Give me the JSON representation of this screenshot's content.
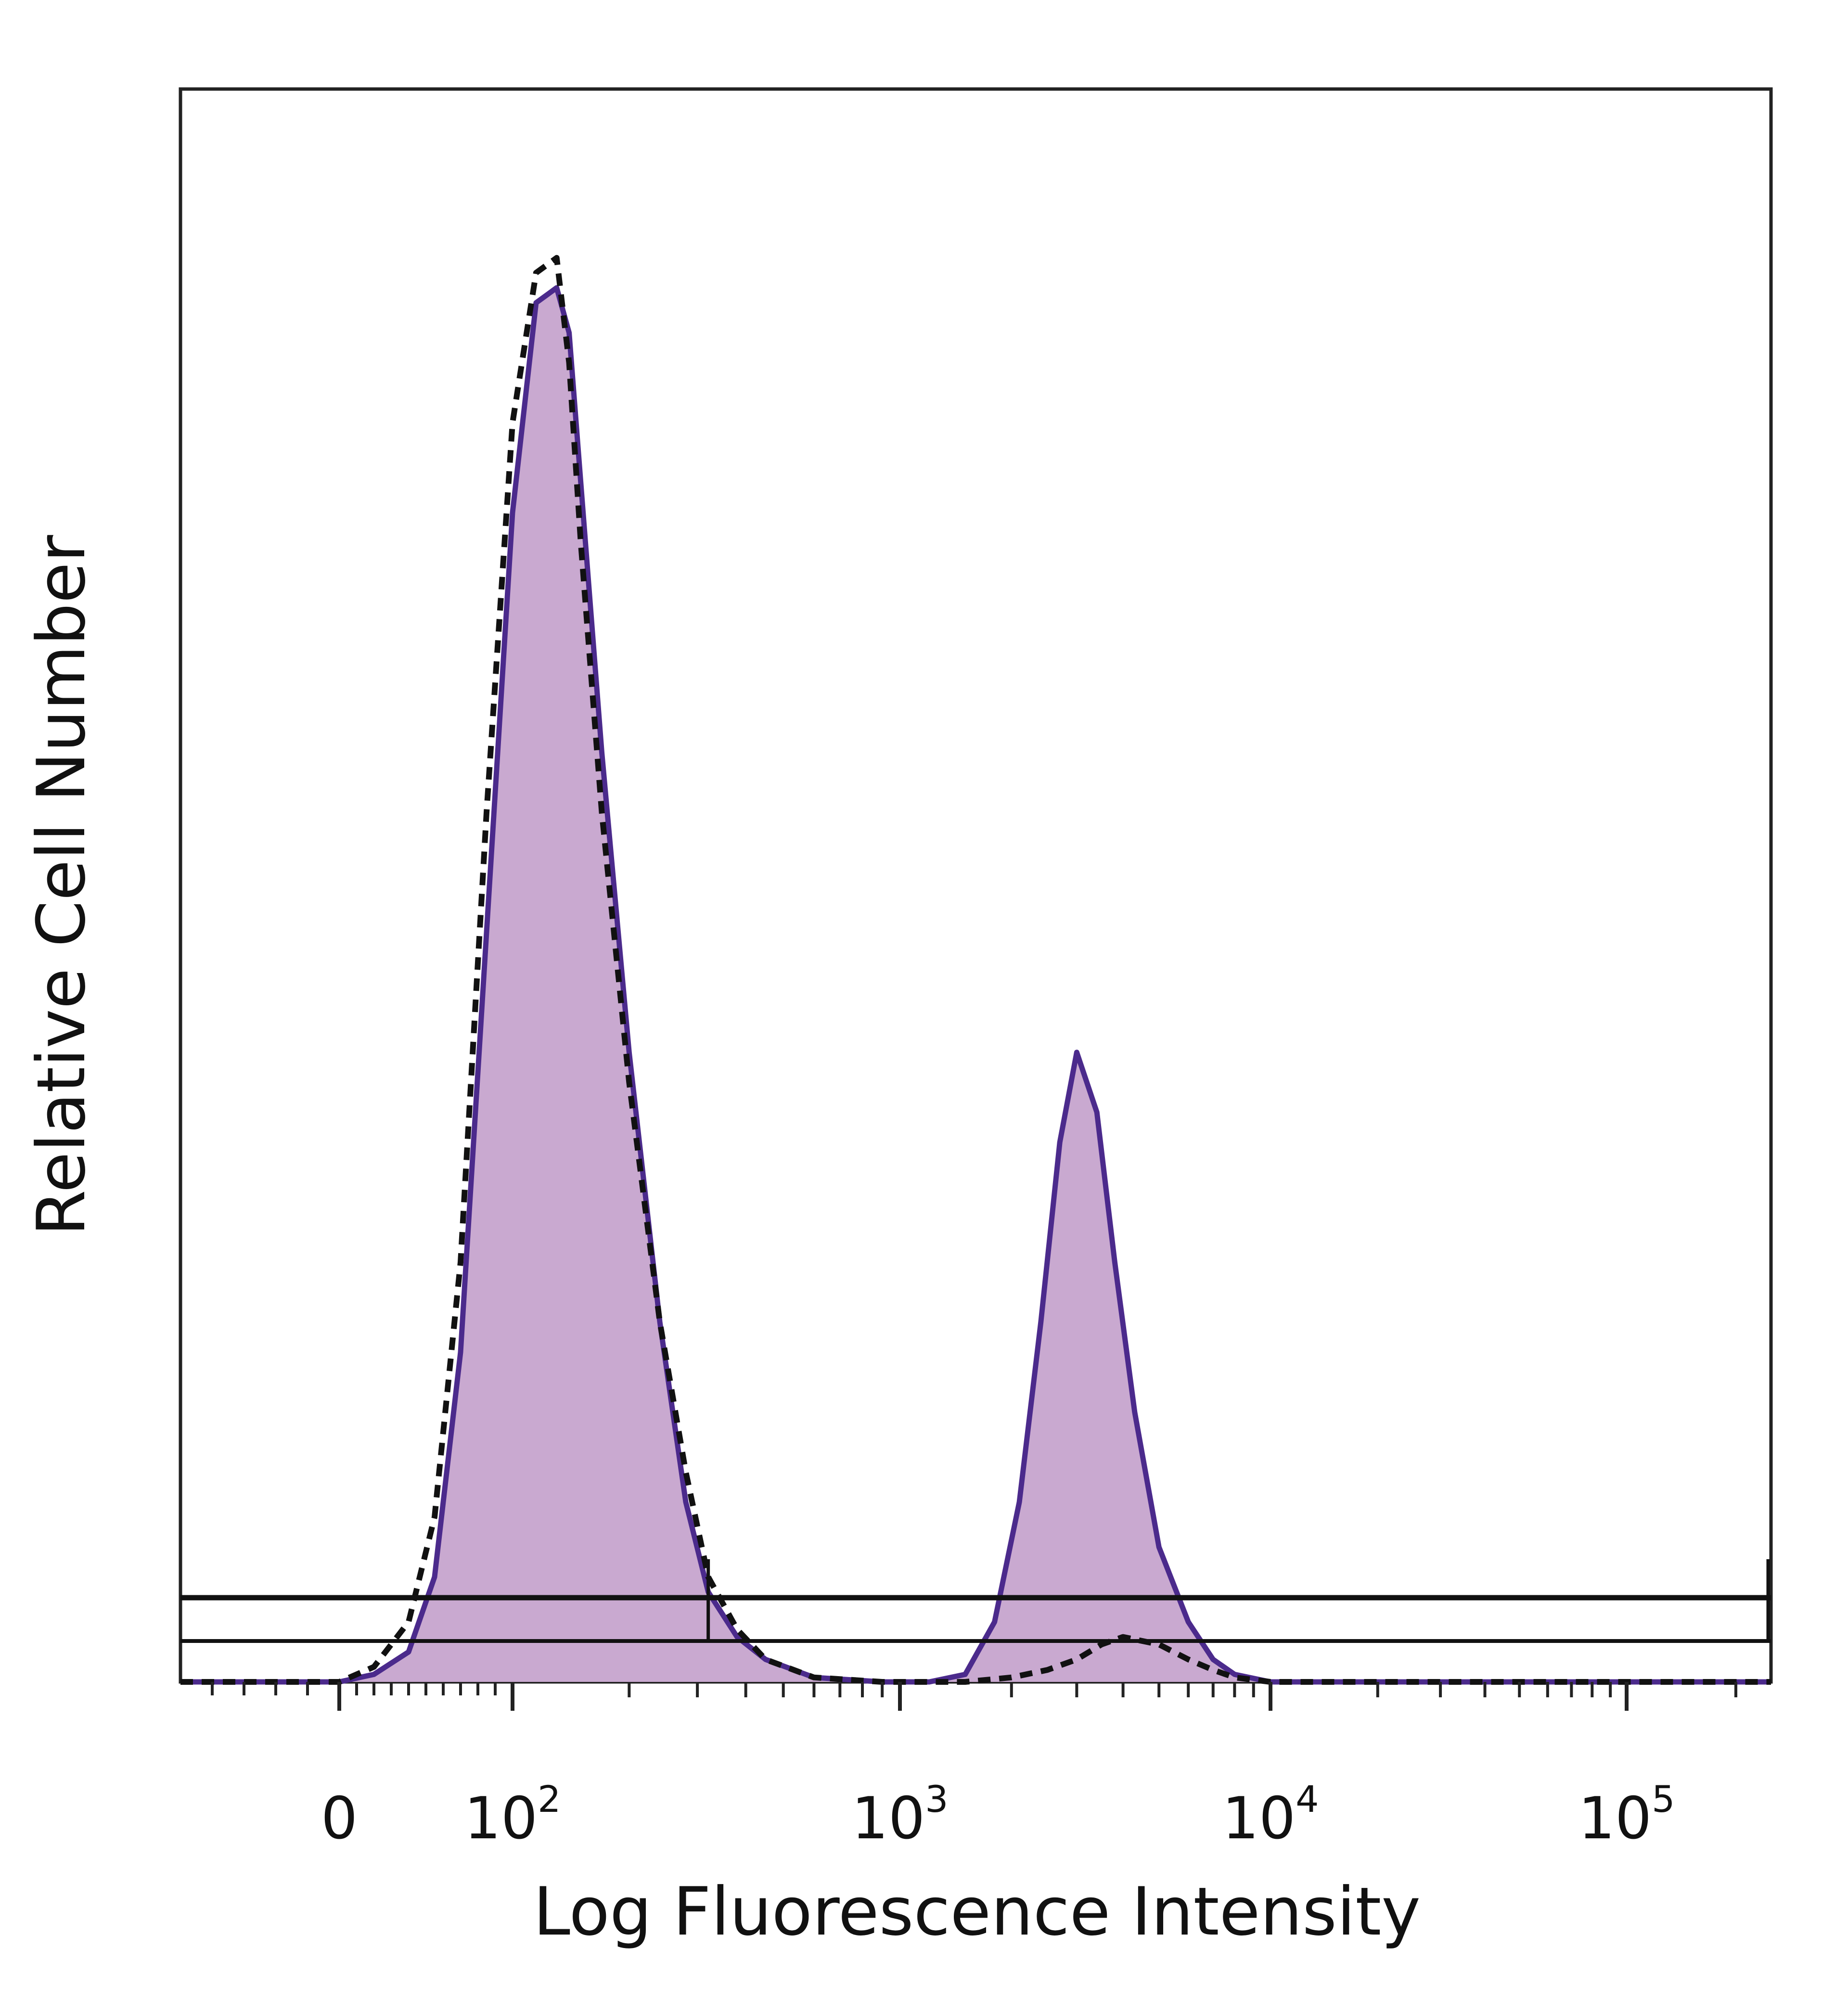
{
  "chart_data": {
    "type": "area",
    "title": "",
    "xlabel": "Log Fluorescence Intensity",
    "ylabel": "Relative Cell Number",
    "x_scale": "biexponential",
    "xlim": [
      -50,
      250000
    ],
    "ylim": [
      0,
      100
    ],
    "x_ticks": [
      {
        "value": 0,
        "label": "0"
      },
      {
        "value": 100,
        "base": "10",
        "exp": "2"
      },
      {
        "value": 1000,
        "base": "10",
        "exp": "3"
      },
      {
        "value": 10000,
        "base": "10",
        "exp": "4"
      },
      {
        "value": 100000,
        "base": "10",
        "exp": "5"
      }
    ],
    "series": [
      {
        "style": "filled-purple",
        "fill_color": "#c9a9d0",
        "line_color": "#4b2a8c",
        "x": [
          -50,
          0,
          20,
          40,
          55,
          70,
          85,
          100,
          115,
          130,
          140,
          150,
          170,
          200,
          240,
          280,
          320,
          380,
          450,
          600,
          900,
          1200,
          1500,
          1800,
          2100,
          2400,
          2700,
          3000,
          3400,
          3800,
          4300,
          5000,
          6000,
          7000,
          8000,
          10000,
          20000,
          100000,
          250000
        ],
        "y": [
          0,
          0,
          0.5,
          2,
          7,
          22,
          50,
          78,
          92,
          93,
          90,
          80,
          62,
          42,
          24,
          12,
          6,
          3,
          1.5,
          0.3,
          0,
          0,
          0.5,
          4,
          12,
          24,
          36,
          42,
          38,
          28,
          18,
          9,
          4,
          1.5,
          0.5,
          0,
          0,
          0,
          0
        ]
      },
      {
        "style": "dashed-black",
        "line_color": "#111111",
        "x": [
          -50,
          0,
          20,
          40,
          55,
          70,
          85,
          100,
          115,
          130,
          140,
          150,
          170,
          200,
          240,
          280,
          320,
          380,
          450,
          600,
          900,
          1200,
          1500,
          2000,
          2500,
          3000,
          3500,
          4000,
          5000,
          6000,
          7000,
          8000,
          10000,
          20000,
          100000,
          250000
        ],
        "y": [
          0,
          0,
          1,
          4,
          11,
          28,
          58,
          84,
          94,
          95,
          88,
          76,
          58,
          40,
          24,
          14,
          7,
          3.5,
          1.5,
          0.3,
          0,
          0,
          0,
          0.3,
          0.8,
          1.5,
          2.5,
          3,
          2.5,
          1.5,
          0.8,
          0.3,
          0,
          0,
          0,
          0
        ]
      }
    ],
    "gate": {
      "from": 320,
      "to": 250000,
      "label": ""
    }
  }
}
